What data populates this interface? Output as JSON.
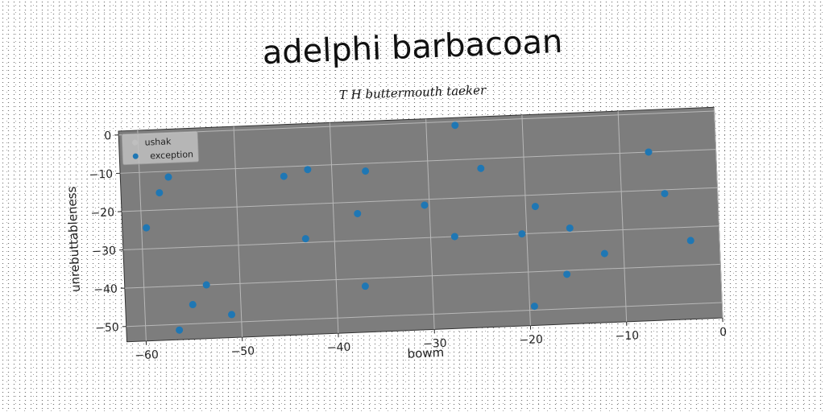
{
  "chart_data": {
    "type": "scatter",
    "title": "adelphi barbacoan",
    "subtitle": "T H buttermouth taeker",
    "xlabel": "bowm",
    "ylabel": "unrebuttableness",
    "xlim": [
      -62,
      0
    ],
    "ylim": [
      -54,
      1
    ],
    "x_ticks": [
      -60,
      -50,
      -40,
      -30,
      -20,
      -10,
      0
    ],
    "y_ticks": [
      0,
      -10,
      -20,
      -30,
      -40,
      -50
    ],
    "grid": true,
    "legend": {
      "placement": "top-left",
      "entries": [
        "ushak",
        "exception"
      ]
    },
    "series": [
      {
        "name": "exception",
        "color": "#1f77b4",
        "points": [
          [
            -59.5,
            -24.5
          ],
          [
            -58.0,
            -15.5
          ],
          [
            -57.0,
            -11.5
          ],
          [
            -56.5,
            -51.5
          ],
          [
            -55.0,
            -45.0
          ],
          [
            -53.5,
            -40.0
          ],
          [
            -51.0,
            -48.0
          ],
          [
            -45.0,
            -12.5
          ],
          [
            -43.0,
            -29.0
          ],
          [
            -42.5,
            -11.0
          ],
          [
            -37.5,
            -23.0
          ],
          [
            -37.0,
            -42.0
          ],
          [
            -36.5,
            -12.0
          ],
          [
            -30.5,
            -21.5
          ],
          [
            -27.5,
            -30.0
          ],
          [
            -27.0,
            -1.0
          ],
          [
            -24.5,
            -12.5
          ],
          [
            -20.5,
            -30.0
          ],
          [
            -19.5,
            -49.0
          ],
          [
            -19.0,
            -23.0
          ],
          [
            -16.0,
            -41.0
          ],
          [
            -15.5,
            -29.0
          ],
          [
            -12.0,
            -36.0
          ],
          [
            -7.0,
            -10.0
          ],
          [
            -5.5,
            -21.0
          ],
          [
            -3.0,
            -33.5
          ]
        ]
      }
    ]
  }
}
